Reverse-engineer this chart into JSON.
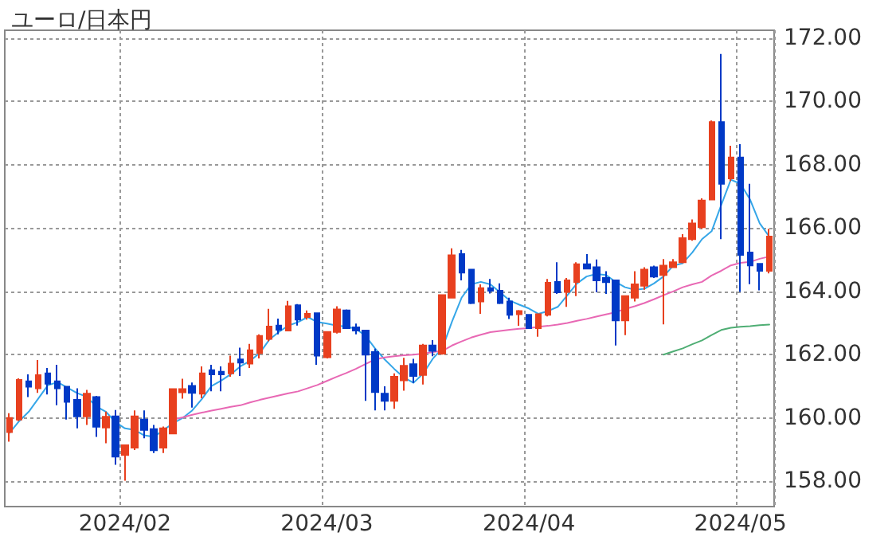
{
  "chart_data": {
    "type": "candlestick",
    "title": "ユーロ/日本円",
    "categories": [
      null,
      null,
      null,
      null,
      null,
      null,
      null,
      null,
      null,
      null,
      null,
      null,
      "2024/02",
      null,
      null,
      null,
      null,
      null,
      null,
      null,
      null,
      null,
      null,
      null,
      null,
      null,
      null,
      null,
      null,
      null,
      null,
      null,
      null,
      "2024/03",
      null,
      null,
      null,
      null,
      null,
      null,
      null,
      null,
      null,
      null,
      null,
      null,
      null,
      null,
      null,
      null,
      null,
      null,
      null,
      null,
      "2024/04",
      null,
      null,
      null,
      null,
      null,
      null,
      null,
      null,
      null,
      null,
      null,
      null,
      null,
      null,
      null,
      null,
      null,
      null,
      null,
      null,
      null,
      "2024/05",
      null,
      null,
      null
    ],
    "ohlc": [
      [
        159.55,
        160.15,
        159.25,
        160.0
      ],
      [
        159.95,
        161.25,
        159.9,
        161.2
      ],
      [
        161.16,
        161.38,
        160.66,
        160.99
      ],
      [
        160.94,
        161.83,
        160.79,
        161.35
      ],
      [
        161.41,
        161.58,
        160.74,
        161.08
      ],
      [
        161.16,
        161.68,
        160.4,
        160.94
      ],
      [
        160.99,
        161.0,
        159.95,
        160.51
      ],
      [
        160.57,
        160.94,
        159.67,
        160.05
      ],
      [
        160.05,
        160.89,
        159.78,
        160.77
      ],
      [
        160.66,
        160.7,
        159.4,
        159.72
      ],
      [
        159.7,
        160.2,
        159.2,
        160.04
      ],
      [
        160.05,
        160.25,
        158.52,
        158.78
      ],
      [
        158.83,
        159.16,
        158.02,
        159.14
      ],
      [
        159.06,
        160.24,
        158.99,
        160.05
      ],
      [
        159.95,
        160.24,
        159.36,
        159.62
      ],
      [
        159.65,
        159.78,
        158.89,
        158.98
      ],
      [
        159.06,
        159.73,
        158.89,
        159.67
      ],
      [
        159.51,
        160.94,
        159.5,
        160.91
      ],
      [
        160.81,
        161.24,
        160.61,
        160.91
      ],
      [
        161.01,
        161.12,
        160.33,
        160.79
      ],
      [
        160.77,
        161.63,
        160.62,
        161.41
      ],
      [
        161.51,
        161.68,
        160.84,
        161.38
      ],
      [
        161.46,
        161.63,
        160.84,
        161.38
      ],
      [
        161.41,
        161.97,
        161.3,
        161.72
      ],
      [
        161.85,
        162.22,
        161.33,
        161.75
      ],
      [
        161.72,
        162.34,
        161.58,
        162.14
      ],
      [
        162.05,
        162.64,
        161.88,
        162.59
      ],
      [
        162.5,
        163.45,
        162.42,
        162.89
      ],
      [
        162.92,
        163.14,
        162.64,
        162.79
      ],
      [
        162.76,
        163.7,
        162.74,
        163.53
      ],
      [
        163.56,
        163.6,
        162.92,
        163.11
      ],
      [
        163.19,
        163.4,
        163.11,
        163.29
      ],
      [
        163.31,
        163.32,
        161.68,
        161.97
      ],
      [
        161.92,
        162.74,
        161.88,
        162.72
      ],
      [
        162.72,
        163.53,
        162.67,
        163.43
      ],
      [
        163.4,
        163.43,
        162.83,
        162.84
      ],
      [
        162.86,
        162.98,
        162.64,
        162.76
      ],
      [
        162.76,
        162.78,
        160.54,
        162.0
      ],
      [
        162.08,
        162.19,
        160.24,
        160.82
      ],
      [
        160.77,
        161.0,
        160.24,
        160.54
      ],
      [
        160.54,
        161.41,
        160.29,
        161.3
      ],
      [
        161.19,
        161.9,
        160.86,
        161.65
      ],
      [
        161.7,
        161.87,
        161.11,
        161.33
      ],
      [
        161.36,
        162.34,
        161.06,
        162.29
      ],
      [
        162.29,
        162.46,
        161.95,
        162.12
      ],
      [
        162.03,
        163.88,
        162.0,
        163.88
      ],
      [
        163.8,
        165.36,
        163.8,
        165.14
      ],
      [
        165.18,
        165.31,
        164.35,
        164.59
      ],
      [
        164.69,
        164.7,
        163.6,
        163.63
      ],
      [
        163.68,
        164.22,
        163.29,
        164.1
      ],
      [
        164.1,
        164.39,
        163.93,
        164.02
      ],
      [
        164.02,
        164.25,
        163.6,
        163.63
      ],
      [
        163.68,
        163.8,
        163.13,
        163.26
      ],
      [
        163.28,
        163.41,
        162.91,
        163.38
      ],
      [
        163.26,
        163.28,
        162.83,
        162.84
      ],
      [
        162.84,
        163.3,
        162.57,
        163.28
      ],
      [
        163.26,
        164.39,
        163.21,
        164.27
      ],
      [
        164.3,
        164.92,
        163.92,
        163.97
      ],
      [
        163.98,
        164.42,
        163.51,
        164.35
      ],
      [
        164.3,
        164.92,
        163.85,
        164.86
      ],
      [
        164.86,
        165.18,
        164.7,
        164.72
      ],
      [
        164.76,
        165.01,
        163.97,
        164.35
      ],
      [
        164.42,
        164.64,
        163.92,
        164.29
      ],
      [
        164.35,
        164.37,
        162.29,
        163.08
      ],
      [
        163.08,
        163.85,
        162.62,
        163.85
      ],
      [
        163.8,
        164.64,
        163.68,
        164.22
      ],
      [
        164.18,
        164.76,
        164.05,
        164.69
      ],
      [
        164.76,
        164.81,
        164.42,
        164.47
      ],
      [
        164.52,
        165.02,
        162.96,
        164.81
      ],
      [
        164.76,
        165.02,
        164.76,
        164.92
      ],
      [
        164.92,
        165.81,
        164.89,
        165.68
      ],
      [
        165.65,
        166.27,
        165.6,
        166.15
      ],
      [
        166.03,
        166.94,
        165.98,
        166.87
      ],
      [
        166.9,
        169.4,
        166.9,
        169.35
      ],
      [
        169.35,
        171.5,
        165.65,
        167.4
      ],
      [
        167.57,
        168.6,
        167.48,
        168.23
      ],
      [
        168.23,
        168.65,
        163.98,
        165.15
      ],
      [
        165.23,
        167.4,
        164.23,
        164.82
      ],
      [
        164.87,
        164.87,
        164.03,
        164.65
      ],
      [
        164.65,
        165.98,
        164.57,
        165.73
      ]
    ],
    "colors": [
      "#e8401f",
      "#e8401f",
      "#0039c6",
      "#e8401f",
      "#0039c6",
      "#0039c6",
      "#0039c6",
      "#0039c6",
      "#e8401f",
      "#0039c6",
      "#e8401f",
      "#0039c6",
      "#e8401f",
      "#e8401f",
      "#0039c6",
      "#0039c6",
      "#e8401f",
      "#e8401f",
      "#e8401f",
      "#0039c6",
      "#e8401f",
      "#0039c6",
      "#0039c6",
      "#e8401f",
      "#0039c6",
      "#e8401f",
      "#e8401f",
      "#e8401f",
      "#0039c6",
      "#e8401f",
      "#0039c6",
      "#e8401f",
      "#0039c6",
      "#e8401f",
      "#e8401f",
      "#0039c6",
      "#0039c6",
      "#0039c6",
      "#0039c6",
      "#0039c6",
      "#e8401f",
      "#e8401f",
      "#0039c6",
      "#e8401f",
      "#0039c6",
      "#e8401f",
      "#e8401f",
      "#0039c6",
      "#0039c6",
      "#e8401f",
      "#0039c6",
      "#0039c6",
      "#0039c6",
      "#e8401f",
      "#0039c6",
      "#e8401f",
      "#e8401f",
      "#0039c6",
      "#e8401f",
      "#e8401f",
      "#0039c6",
      "#0039c6",
      "#0039c6",
      "#0039c6",
      "#e8401f",
      "#e8401f",
      "#e8401f",
      "#0039c6",
      "#e8401f",
      "#e8401f",
      "#e8401f",
      "#e8401f",
      "#e8401f",
      "#e8401f",
      "#0039c6",
      "#e8401f",
      "#0039c6",
      "#0039c6",
      "#0039c6",
      "#e8401f"
    ],
    "series": [
      {
        "type": "line",
        "color": "#35a6e8",
        "values": [
          159.53,
          159.9,
          160.2,
          160.62,
          161.04,
          161.13,
          160.96,
          160.79,
          160.67,
          160.37,
          160.2,
          159.87,
          159.67,
          159.62,
          159.45,
          159.4,
          159.62,
          159.83,
          160.0,
          160.24,
          160.6,
          161.01,
          161.18,
          161.38,
          161.63,
          161.8,
          162.05,
          162.47,
          162.72,
          162.92,
          163.03,
          163.19,
          163.03,
          162.98,
          162.92,
          162.89,
          162.82,
          162.6,
          162.2,
          161.85,
          161.55,
          161.28,
          161.11,
          161.4,
          161.87,
          162.2,
          163.04,
          163.8,
          164.22,
          164.3,
          164.22,
          163.97,
          163.71,
          163.58,
          163.46,
          163.29,
          163.38,
          163.51,
          163.88,
          164.25,
          164.47,
          164.55,
          164.52,
          164.3,
          164.13,
          164.05,
          164.08,
          164.25,
          164.47,
          164.81,
          164.89,
          165.23,
          165.65,
          165.9,
          166.73,
          167.53,
          167.4,
          166.9,
          166.15,
          165.73
        ]
      },
      {
        "type": "line",
        "color": "#e868b4",
        "values": [
          null,
          null,
          null,
          null,
          null,
          null,
          null,
          null,
          null,
          null,
          null,
          null,
          null,
          null,
          null,
          null,
          null,
          159.95,
          160.02,
          160.1,
          160.17,
          160.23,
          160.29,
          160.35,
          160.4,
          160.49,
          160.57,
          160.64,
          160.71,
          160.78,
          160.84,
          160.94,
          161.04,
          161.17,
          161.3,
          161.42,
          161.55,
          161.7,
          161.85,
          161.91,
          161.95,
          161.98,
          162.0,
          162.03,
          162.08,
          162.12,
          162.29,
          162.42,
          162.54,
          162.63,
          162.71,
          162.75,
          162.79,
          162.82,
          162.84,
          162.88,
          162.91,
          162.95,
          163.0,
          163.07,
          163.13,
          163.2,
          163.27,
          163.34,
          163.44,
          163.53,
          163.63,
          163.75,
          163.88,
          164.0,
          164.13,
          164.22,
          164.3,
          164.5,
          164.65,
          164.82,
          164.9,
          164.93,
          165.03,
          165.1
        ]
      },
      {
        "type": "line",
        "color": "#4fae74",
        "values": [
          null,
          null,
          null,
          null,
          null,
          null,
          null,
          null,
          null,
          null,
          null,
          null,
          null,
          null,
          null,
          null,
          null,
          null,
          null,
          null,
          null,
          null,
          null,
          null,
          null,
          null,
          null,
          null,
          null,
          null,
          null,
          null,
          null,
          null,
          null,
          null,
          null,
          null,
          null,
          null,
          null,
          null,
          null,
          null,
          null,
          null,
          null,
          null,
          null,
          null,
          null,
          null,
          null,
          null,
          null,
          null,
          null,
          null,
          null,
          null,
          null,
          null,
          null,
          null,
          null,
          null,
          null,
          null,
          162.0,
          162.1,
          162.2,
          162.33,
          162.45,
          162.62,
          162.78,
          162.85,
          162.88,
          162.9,
          162.93,
          162.95
        ]
      }
    ],
    "ylim": [
      157.2,
      172.25
    ],
    "yticks": [
      {
        "value": 158,
        "label": "158.00"
      },
      {
        "value": 160,
        "label": "160.00"
      },
      {
        "value": 162,
        "label": "162.00"
      },
      {
        "value": 164,
        "label": "164.00"
      },
      {
        "value": 166,
        "label": "166.00"
      },
      {
        "value": 168,
        "label": "168.00"
      },
      {
        "value": 170,
        "label": "170.00"
      },
      {
        "value": 172,
        "label": "172.00"
      }
    ],
    "grid": true
  }
}
